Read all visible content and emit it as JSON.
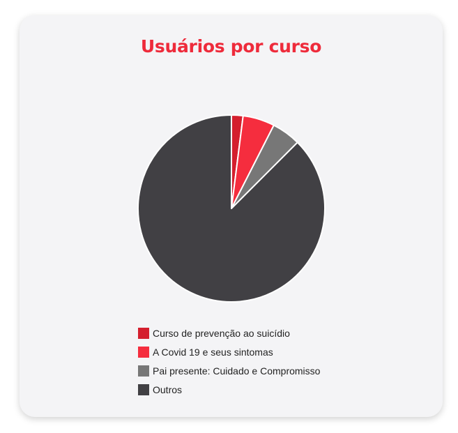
{
  "title": "Usuários por curso",
  "chart_data": {
    "type": "pie",
    "title": "Usuários por curso",
    "legend_position": "bottom",
    "series": [
      {
        "name": "Curso de prevenção ao suicídio",
        "value": 2,
        "color": "#d41f2e"
      },
      {
        "name": "A Covid 19 e seus sintomas",
        "value": 5.5,
        "color": "#f52d3e"
      },
      {
        "name": "Pai presente: Cuidado e Compromisso",
        "value": 5,
        "color": "#777777"
      },
      {
        "name": "Outros",
        "value": 87.5,
        "color": "#414044"
      }
    ]
  }
}
